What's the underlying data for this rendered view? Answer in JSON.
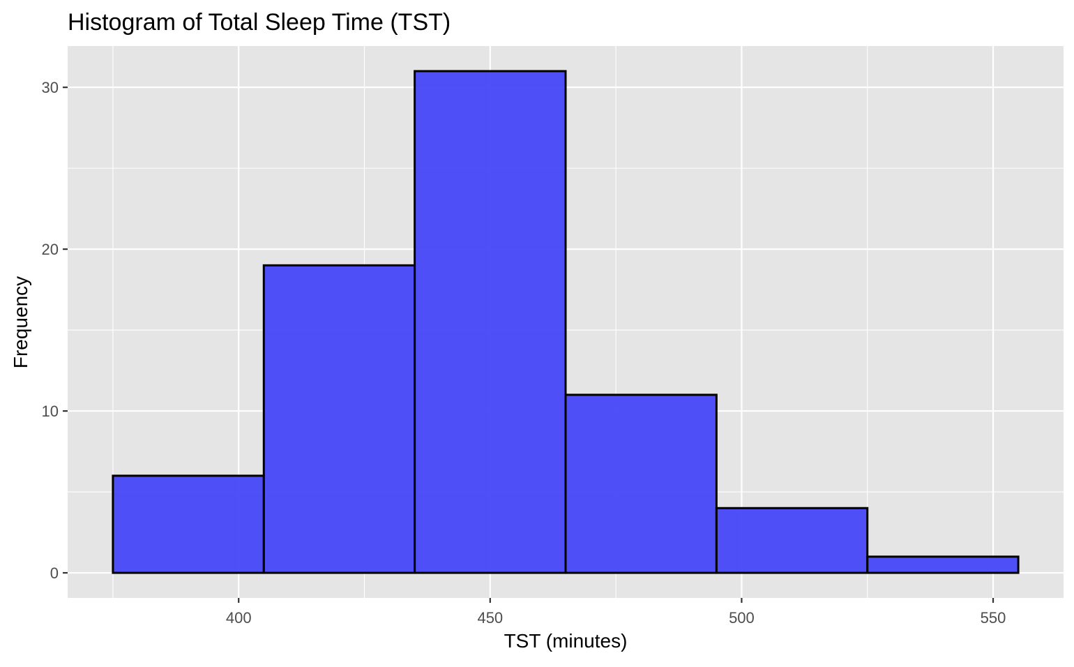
{
  "chart_data": {
    "type": "bar",
    "title": "Histogram of Total Sleep Time (TST)",
    "xlabel": "TST (minutes)",
    "ylabel": "Frequency",
    "bins": [
      {
        "x0": 375,
        "x1": 405,
        "count": 6
      },
      {
        "x0": 405,
        "x1": 435,
        "count": 19
      },
      {
        "x0": 435,
        "x1": 465,
        "count": 31
      },
      {
        "x0": 465,
        "x1": 495,
        "count": 11
      },
      {
        "x0": 495,
        "x1": 525,
        "count": 4
      },
      {
        "x0": 525,
        "x1": 555,
        "count": 1
      }
    ],
    "xlim": [
      366,
      564
    ],
    "ylim": [
      -1.55,
      32.55
    ],
    "x_ticks": [
      400,
      450,
      500,
      550
    ],
    "x_tick_labels": [
      "400",
      "450",
      "500",
      "550"
    ],
    "y_ticks": [
      0,
      10,
      20,
      30
    ],
    "y_tick_labels": [
      "0",
      "10",
      "20",
      "30"
    ],
    "grid": true,
    "legend": "none",
    "colors": {
      "bar_fill": "#4747f9",
      "bar_outline": "#000000",
      "panel_background": "#e5e5e5",
      "grid": "#ffffff",
      "tick_label": "#4d4d4d"
    }
  }
}
